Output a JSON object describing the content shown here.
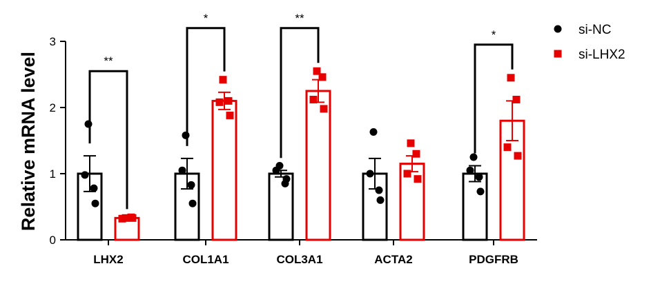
{
  "chart_data": {
    "type": "bar",
    "ylabel": "Relative mRNA level",
    "xlabel": "",
    "ylim": [
      0,
      3
    ],
    "yticks": [
      0,
      1,
      2,
      3
    ],
    "grid": false,
    "legend_position": "top-right",
    "categories": [
      "LHX2",
      "COL1A1",
      "COL3A1",
      "ACTA2",
      "PDGFRB"
    ],
    "series": [
      {
        "name": "si-NC",
        "color": "#000000",
        "marker": "circle",
        "values": [
          1.0,
          1.0,
          1.0,
          1.0,
          1.0
        ],
        "errors": [
          0.27,
          0.23,
          0.05,
          0.23,
          0.12
        ],
        "points": [
          [
            1.75,
            0.78,
            0.98,
            0.55
          ],
          [
            1.58,
            0.83,
            1.05,
            0.55
          ],
          [
            1.12,
            0.85,
            1.05,
            0.92
          ],
          [
            1.63,
            0.75,
            1.0,
            0.6
          ],
          [
            1.25,
            0.95,
            1.05,
            0.73
          ]
        ]
      },
      {
        "name": "si-LHX2",
        "color": "#e60000",
        "marker": "square",
        "values": [
          0.33,
          2.1,
          2.25,
          1.15,
          1.8
        ],
        "errors": [
          0.01,
          0.13,
          0.17,
          0.12,
          0.3
        ],
        "points": [
          [
            0.33,
            0.34,
            0.32,
            0.33
          ],
          [
            2.42,
            2.1,
            2.08,
            1.88
          ],
          [
            2.55,
            2.46,
            2.12,
            1.98
          ],
          [
            1.46,
            1.3,
            1.0,
            0.92
          ],
          [
            2.45,
            2.12,
            1.4,
            1.27
          ]
        ]
      }
    ],
    "significance": [
      {
        "category": "LHX2",
        "label": "**",
        "height": 2.55
      },
      {
        "category": "COL1A1",
        "label": "*",
        "height": 3.2
      },
      {
        "category": "COL3A1",
        "label": "**",
        "height": 3.2
      },
      {
        "category": "PDGFRB",
        "label": "*",
        "height": 2.95
      }
    ]
  }
}
